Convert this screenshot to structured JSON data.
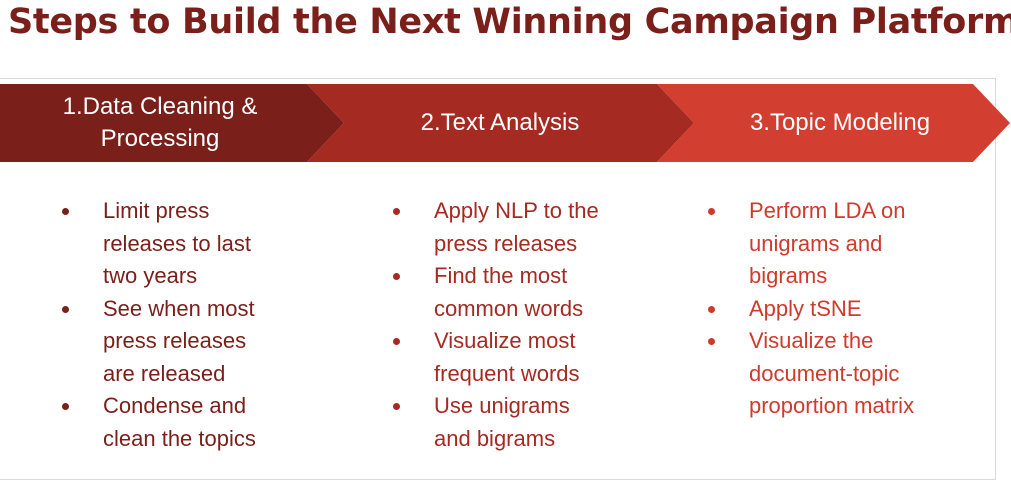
{
  "title": "Steps to Build the Next Winning Campaign Platform",
  "colors": {
    "step1": "#7a1f1a",
    "step2": "#a52a22",
    "step3": "#d23e2f"
  },
  "steps": [
    {
      "label_line1": "1.Data Cleaning &",
      "label_line2": "Processing",
      "bullets": [
        {
          "l1": "Limit press",
          "l2": "releases to last",
          "l3": "two years"
        },
        {
          "l1": "See when most",
          "l2": "press releases",
          "l3": "are released"
        },
        {
          "l1": "Condense and",
          "l2": "clean the topics"
        }
      ]
    },
    {
      "label_line1": "2.Text Analysis",
      "bullets": [
        {
          "l1": "Apply NLP to the",
          "l2": "press releases"
        },
        {
          "l1": "Find the most",
          "l2": "common words"
        },
        {
          "l1": "Visualize most",
          "l2": "frequent words"
        },
        {
          "l1": "Use unigrams",
          "l2": "and bigrams"
        }
      ]
    },
    {
      "label_line1": "3.Topic Modeling",
      "bullets": [
        {
          "l1": "Perform LDA on",
          "l2": "unigrams and",
          "l3": "bigrams"
        },
        {
          "l1": "Apply tSNE"
        },
        {
          "l1": "Visualize the",
          "l2": "document-topic",
          "l3": "proportion matrix"
        }
      ]
    }
  ]
}
